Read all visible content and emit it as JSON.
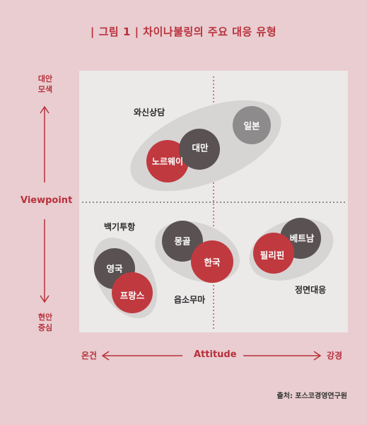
{
  "title": "| 그림 1 | 차이나불링의 주요 대응 유형",
  "y_axis": {
    "label": "Viewpoint",
    "top": "대안 모색",
    "bottom": "현안 중심"
  },
  "x_axis": {
    "label": "Attitude",
    "left": "온건",
    "right": "강경"
  },
  "groups": [
    {
      "label": "와신상담"
    },
    {
      "label": "백기투항"
    },
    {
      "label": "읍소무마"
    },
    {
      "label": "정면대응"
    }
  ],
  "countries": [
    "노르웨이",
    "대만",
    "일본",
    "영국",
    "프랑스",
    "몽골",
    "한국",
    "필리핀",
    "베트남"
  ],
  "source": "출처: 포스코경영연구원",
  "colors": {
    "red": "#c0393f",
    "dark": "#5a5152",
    "gray": "#8d8b8b",
    "accent": "#b8303b"
  }
}
